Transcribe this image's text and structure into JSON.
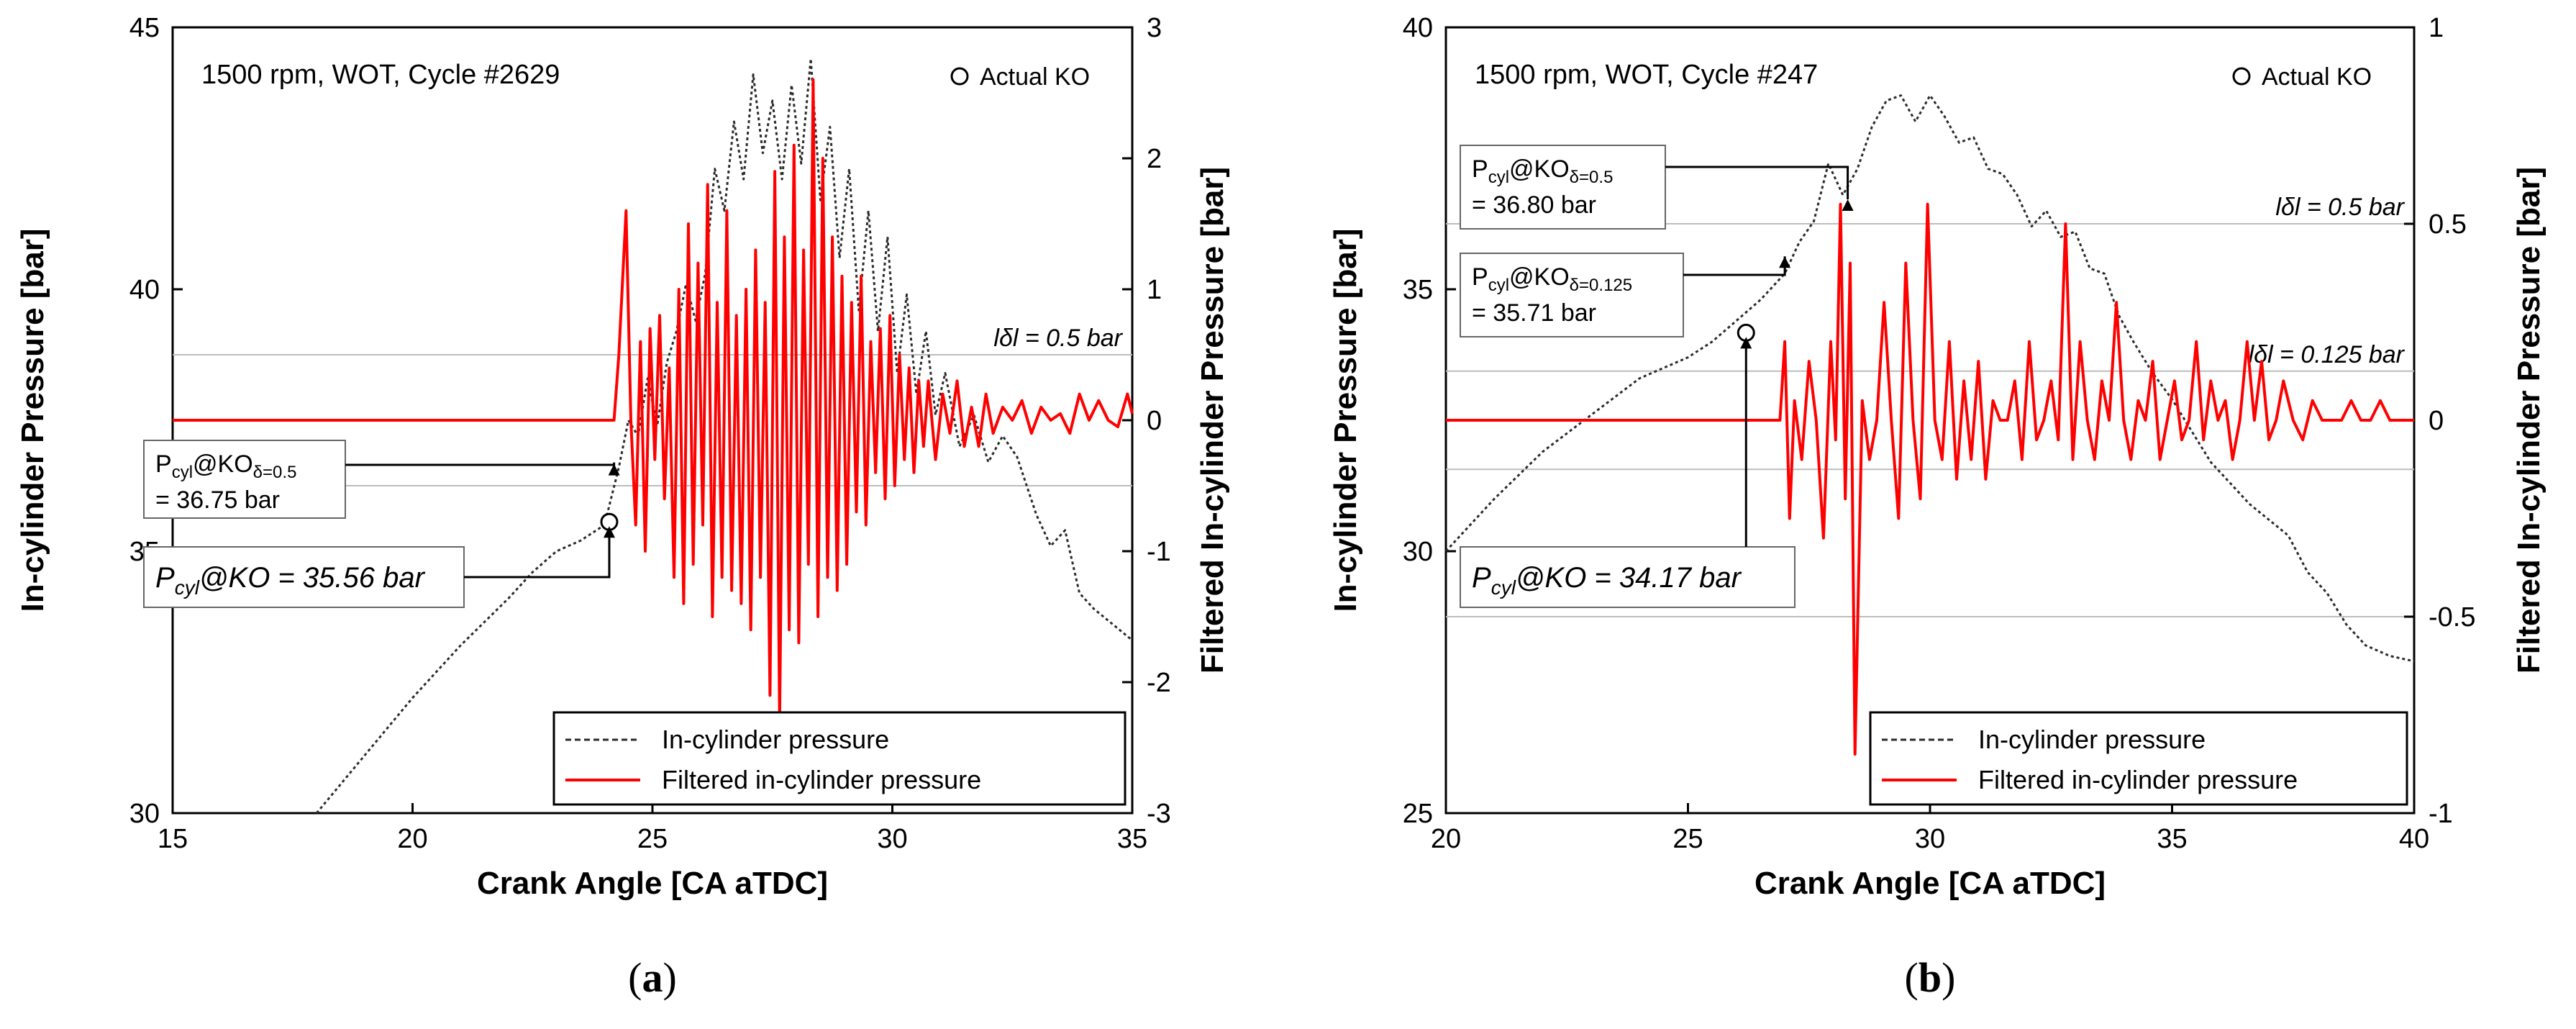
{
  "chart_data": [
    {
      "type": "line",
      "panel_label": "(a)",
      "xlabel": "Crank Angle [CA aTDC]",
      "ylabel": "In-cylinder Pressure [bar]",
      "y2label": "Filtered In-cylinder Pressure [bar]",
      "xlim": [
        15,
        35
      ],
      "ylim": [
        30,
        45
      ],
      "y2lim": [
        -3,
        3
      ],
      "xticks": [
        "15",
        "20",
        "25",
        "30",
        "35"
      ],
      "yticks": [
        "30",
        "35",
        "40",
        "45"
      ],
      "y2ticks": [
        "-3",
        "-2",
        "-1",
        "0",
        "1",
        "2",
        "3"
      ],
      "cycle_text": "1500 rpm, WOT, Cycle #2629",
      "actual_ko_label": "Actual KO",
      "legend": [
        "In-cylinder pressure",
        "Filtered in-cylinder pressure"
      ],
      "thresholds": [
        {
          "y2": 0.5,
          "label": "lδl = 0.5 bar"
        }
      ],
      "annotations": [
        {
          "line1": "P",
          "sub1": "cyl",
          "mid": "@KO",
          "sub2": "δ=0.5",
          "line2": "= 36.75 bar",
          "x": 24.2,
          "y": 36.75
        },
        {
          "line1": "P",
          "sub1": "cyl",
          "mid": "@KO = 35.56 bar",
          "x": 24.1,
          "y": 35.56
        }
      ],
      "actual_ko": {
        "x": 24.1,
        "y": 35.56
      },
      "series": [
        {
          "name": "In-cylinder pressure",
          "color": "#2b2b2b",
          "style": "dotted",
          "x": [
            18.0,
            19.0,
            20.0,
            21.0,
            22.0,
            22.5,
            23.0,
            23.5,
            24.0,
            24.3,
            24.5,
            24.7,
            24.9,
            25.1,
            25.3,
            25.5,
            25.7,
            25.9,
            26.1,
            26.3,
            26.5,
            26.7,
            26.9,
            27.1,
            27.3,
            27.5,
            27.7,
            27.9,
            28.1,
            28.3,
            28.5,
            28.7,
            28.9,
            29.1,
            29.3,
            29.5,
            29.7,
            29.9,
            30.1,
            30.3,
            30.5,
            30.7,
            30.9,
            31.1,
            31.4,
            31.7,
            32.0,
            32.3,
            32.6,
            33.0,
            33.3,
            33.6,
            33.9,
            34.2,
            34.6,
            35.0
          ],
          "y": [
            30.0,
            31.1,
            32.2,
            33.2,
            34.1,
            34.6,
            35.0,
            35.2,
            35.5,
            36.6,
            37.5,
            37.2,
            38.3,
            37.4,
            38.6,
            39.2,
            40.1,
            39.4,
            40.3,
            42.3,
            41.5,
            43.2,
            42.1,
            44.1,
            42.6,
            43.6,
            42.1,
            43.9,
            42.4,
            44.4,
            41.7,
            43.1,
            40.6,
            42.3,
            39.6,
            41.5,
            39.2,
            41.0,
            38.4,
            39.9,
            38.0,
            39.2,
            37.6,
            38.4,
            37.0,
            37.6,
            36.7,
            37.2,
            36.8,
            35.7,
            35.1,
            35.4,
            34.2,
            33.9,
            33.6,
            33.3
          ]
        },
        {
          "name": "Filtered in-cylinder pressure",
          "color": "#ff0000",
          "style": "solid",
          "axis": "y2",
          "x": [
            15.0,
            24.2,
            24.3,
            24.45,
            24.55,
            24.65,
            24.75,
            24.85,
            24.95,
            25.05,
            25.15,
            25.25,
            25.35,
            25.45,
            25.55,
            25.65,
            25.75,
            25.85,
            25.95,
            26.05,
            26.15,
            26.25,
            26.35,
            26.45,
            26.55,
            26.65,
            26.75,
            26.85,
            26.95,
            27.05,
            27.15,
            27.25,
            27.35,
            27.45,
            27.55,
            27.65,
            27.75,
            27.85,
            27.95,
            28.05,
            28.15,
            28.25,
            28.35,
            28.45,
            28.55,
            28.65,
            28.75,
            28.85,
            28.95,
            29.05,
            29.15,
            29.25,
            29.35,
            29.45,
            29.55,
            29.65,
            29.75,
            29.85,
            29.95,
            30.05,
            30.15,
            30.25,
            30.35,
            30.45,
            30.55,
            30.65,
            30.75,
            30.9,
            31.05,
            31.2,
            31.35,
            31.5,
            31.65,
            31.8,
            31.95,
            32.1,
            32.3,
            32.5,
            32.7,
            32.9,
            33.1,
            33.3,
            33.5,
            33.7,
            33.9,
            34.1,
            34.3,
            34.5,
            34.7,
            34.9,
            35.0
          ],
          "y": [
            0.0,
            0.0,
            0.5,
            1.6,
            0.0,
            -0.8,
            0.6,
            -1.0,
            0.7,
            -0.3,
            0.8,
            -0.6,
            0.4,
            -1.2,
            1.0,
            -1.4,
            1.5,
            -1.1,
            1.2,
            -0.8,
            1.8,
            -1.5,
            0.9,
            -1.2,
            1.6,
            -1.3,
            0.8,
            -1.4,
            1.0,
            -1.6,
            1.3,
            -1.2,
            0.9,
            -2.1,
            1.9,
            -2.3,
            1.4,
            -1.6,
            2.1,
            -1.7,
            1.3,
            -1.1,
            2.6,
            -1.5,
            2.0,
            -1.2,
            1.4,
            -1.3,
            1.1,
            -1.1,
            0.9,
            -0.7,
            1.1,
            -0.8,
            0.6,
            -0.4,
            0.7,
            -0.6,
            0.8,
            -0.5,
            0.5,
            -0.3,
            0.4,
            -0.4,
            0.3,
            -0.2,
            0.3,
            -0.3,
            0.2,
            -0.1,
            0.3,
            -0.2,
            0.1,
            -0.2,
            0.2,
            -0.1,
            0.1,
            0.0,
            0.15,
            -0.1,
            0.1,
            0.0,
            0.05,
            -0.1,
            0.2,
            0.0,
            0.15,
            0.0,
            -0.05,
            0.2,
            0.05
          ]
        }
      ]
    },
    {
      "type": "line",
      "panel_label": "(b)",
      "xlabel": "Crank Angle [CA aTDC]",
      "ylabel": "In-cylinder Pressure [bar]",
      "y2label": "Filtered In-cylinder Pressure [bar]",
      "xlim": [
        20,
        40
      ],
      "ylim": [
        25,
        40
      ],
      "y2lim": [
        -1,
        1
      ],
      "xticks": [
        "20",
        "25",
        "30",
        "35",
        "40"
      ],
      "yticks": [
        "25",
        "30",
        "35",
        "40"
      ],
      "y2ticks": [
        "-1",
        "-0.5",
        "0",
        "0.5",
        "1"
      ],
      "cycle_text": "1500 rpm, WOT, Cycle #247",
      "actual_ko_label": "Actual KO",
      "legend": [
        "In-cylinder pressure",
        "Filtered in-cylinder pressure"
      ],
      "thresholds": [
        {
          "y2": 0.5,
          "label": "lδl = 0.5 bar"
        },
        {
          "y2": 0.125,
          "label": "lδl = 0.125 bar"
        }
      ],
      "annotations": [
        {
          "line1": "P",
          "sub1": "cyl",
          "mid": "@KO",
          "sub2": "δ=0.5",
          "line2": "= 36.80 bar",
          "x": 28.3,
          "y": 36.8
        },
        {
          "line1": "P",
          "sub1": "cyl",
          "mid": "@KO",
          "sub2": "δ=0.125",
          "line2": "= 35.71 bar",
          "x": 27.0,
          "y": 35.71
        },
        {
          "line1": "P",
          "sub1": "cyl",
          "mid": "@KO = 34.17 bar",
          "x": 26.2,
          "y": 34.17
        }
      ],
      "actual_ko": {
        "x": 26.2,
        "y": 34.17
      },
      "series": [
        {
          "name": "In-cylinder pressure",
          "color": "#2b2b2b",
          "style": "dotted",
          "x": [
            20.0,
            21.0,
            22.0,
            23.0,
            24.0,
            25.0,
            25.5,
            26.0,
            26.5,
            27.0,
            27.3,
            27.6,
            27.9,
            28.2,
            28.5,
            28.8,
            29.1,
            29.4,
            29.7,
            30.0,
            30.3,
            30.6,
            30.9,
            31.2,
            31.5,
            31.8,
            32.1,
            32.4,
            32.7,
            33.0,
            33.3,
            33.6,
            33.9,
            34.2,
            34.6,
            35.0,
            35.4,
            35.8,
            36.2,
            36.6,
            37.0,
            37.4,
            37.8,
            38.2,
            38.6,
            39.0,
            39.5,
            40.0
          ],
          "y": [
            30.0,
            31.0,
            31.9,
            32.6,
            33.3,
            33.7,
            34.0,
            34.4,
            34.8,
            35.3,
            35.9,
            36.3,
            37.4,
            36.8,
            37.3,
            38.1,
            38.6,
            38.7,
            38.2,
            38.7,
            38.3,
            37.8,
            37.9,
            37.3,
            37.2,
            36.8,
            36.2,
            36.5,
            36.0,
            36.1,
            35.4,
            35.3,
            34.5,
            34.0,
            33.4,
            32.9,
            32.3,
            31.7,
            31.3,
            30.9,
            30.6,
            30.3,
            29.6,
            29.2,
            28.6,
            28.2,
            28.0,
            27.9
          ]
        },
        {
          "name": "Filtered in-cylinder pressure",
          "color": "#ff0000",
          "style": "solid",
          "axis": "y2",
          "x": [
            20.0,
            26.9,
            27.0,
            27.1,
            27.2,
            27.35,
            27.5,
            27.65,
            27.8,
            27.95,
            28.05,
            28.15,
            28.25,
            28.35,
            28.45,
            28.6,
            28.75,
            28.9,
            29.05,
            29.2,
            29.35,
            29.5,
            29.65,
            29.8,
            29.95,
            30.1,
            30.25,
            30.4,
            30.55,
            30.7,
            30.85,
            31.0,
            31.15,
            31.3,
            31.45,
            31.6,
            31.75,
            31.9,
            32.05,
            32.2,
            32.35,
            32.5,
            32.65,
            32.8,
            32.95,
            33.1,
            33.25,
            33.4,
            33.55,
            33.7,
            33.85,
            34.0,
            34.15,
            34.3,
            34.45,
            34.6,
            34.75,
            34.9,
            35.05,
            35.2,
            35.35,
            35.5,
            35.65,
            35.8,
            35.95,
            36.1,
            36.25,
            36.4,
            36.55,
            36.7,
            36.85,
            37.0,
            37.15,
            37.3,
            37.5,
            37.7,
            37.9,
            38.1,
            38.3,
            38.5,
            38.7,
            38.9,
            39.1,
            39.3,
            39.5,
            39.7,
            40.0
          ],
          "y": [
            0.0,
            0.0,
            0.2,
            -0.25,
            0.05,
            -0.1,
            0.15,
            0.0,
            -0.3,
            0.2,
            -0.05,
            0.55,
            -0.2,
            0.4,
            -0.85,
            0.05,
            -0.1,
            0.0,
            0.3,
            0.0,
            -0.25,
            0.4,
            0.0,
            -0.2,
            0.55,
            0.0,
            -0.1,
            0.2,
            -0.15,
            0.1,
            -0.1,
            0.15,
            -0.15,
            0.05,
            0.0,
            0.0,
            0.1,
            -0.1,
            0.2,
            -0.05,
            0.0,
            0.1,
            -0.05,
            0.5,
            -0.1,
            0.2,
            0.0,
            -0.1,
            0.1,
            0.0,
            0.3,
            0.0,
            -0.1,
            0.05,
            0.0,
            0.15,
            -0.1,
            0.0,
            0.1,
            -0.05,
            0.0,
            0.2,
            -0.05,
            0.1,
            0.0,
            0.05,
            -0.1,
            0.0,
            0.2,
            0.0,
            0.15,
            -0.05,
            0.0,
            0.1,
            0.0,
            -0.05,
            0.05,
            0.0,
            0.0,
            0.0,
            0.05,
            0.0,
            0.0,
            0.05,
            0.0,
            0.0,
            0.0
          ]
        }
      ]
    }
  ]
}
